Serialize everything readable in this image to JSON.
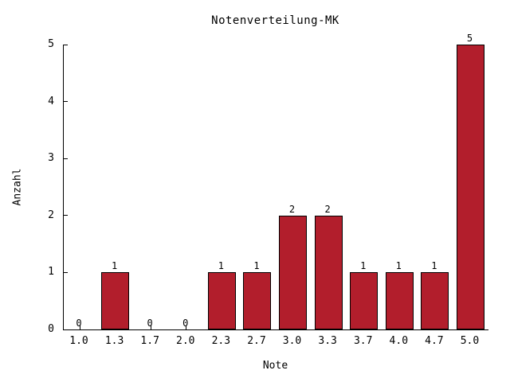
{
  "chart_data": {
    "type": "bar",
    "title": "Notenverteilung-MK",
    "xlabel": "Note",
    "ylabel": "Anzahl",
    "categories": [
      "1.0",
      "1.3",
      "1.7",
      "2.0",
      "2.3",
      "2.7",
      "3.0",
      "3.3",
      "3.7",
      "4.0",
      "4.7",
      "5.0"
    ],
    "values": [
      0,
      1,
      0,
      0,
      1,
      1,
      2,
      2,
      1,
      1,
      1,
      5
    ],
    "value_labels": [
      "0",
      "1",
      "0",
      "0",
      "1",
      "1",
      "2",
      "2",
      "1",
      "1",
      "1",
      "5"
    ],
    "y_ticks": [
      0,
      1,
      2,
      3,
      4,
      5
    ],
    "ylim": [
      0,
      5
    ],
    "grid": false,
    "legend": false,
    "bar_color": "#b21e2c",
    "bar_border_color": "#000000",
    "axis_color": "#000000",
    "text_color": "#000000"
  }
}
